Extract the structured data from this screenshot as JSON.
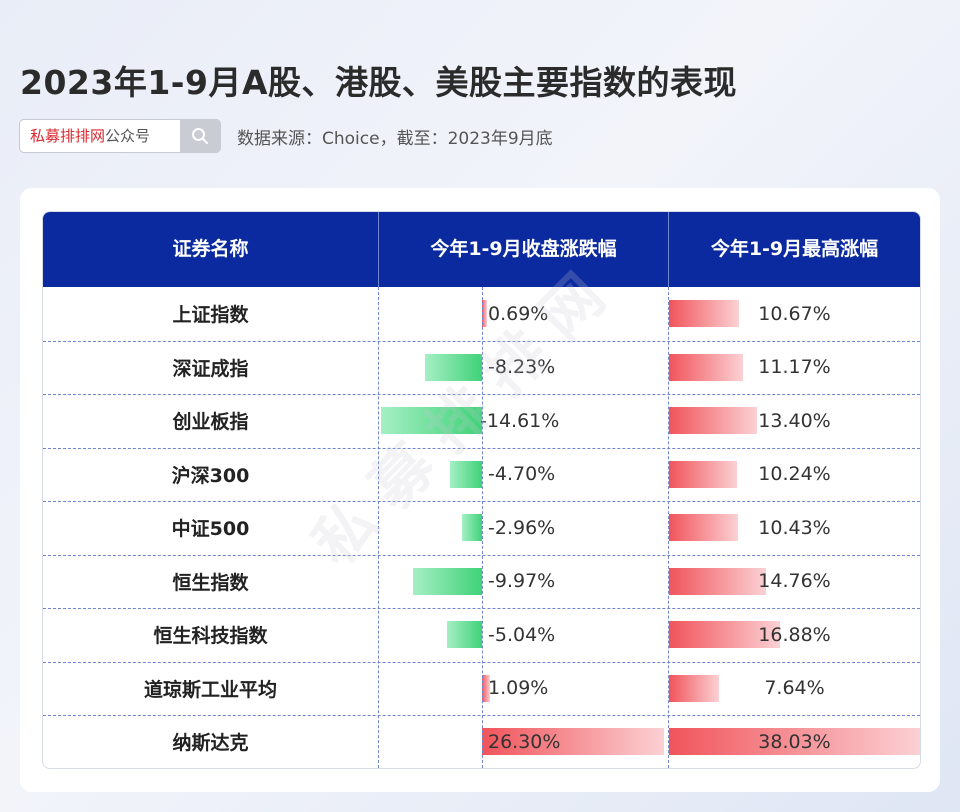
{
  "header": {
    "title": "2023年1-9月A股、港股、美股主要指数的表现",
    "search_brand": "私募排排网",
    "search_suffix": "公众号",
    "source": "数据来源：Choice，截至：2023年9月底"
  },
  "table": {
    "columns": [
      "证券名称",
      "今年1-9月收盘涨跌幅",
      "今年1-9月最高涨幅"
    ],
    "rows": [
      {
        "name": "上证指数",
        "close": 0.69,
        "close_text": "0.69%",
        "high": 10.67,
        "high_text": "10.67%"
      },
      {
        "name": "深证成指",
        "close": -8.23,
        "close_text": "-8.23%",
        "high": 11.17,
        "high_text": "11.17%"
      },
      {
        "name": "创业板指",
        "close": -14.61,
        "close_text": "-14.61%",
        "high": 13.4,
        "high_text": "13.40%"
      },
      {
        "name": "沪深300",
        "close": -4.7,
        "close_text": "-4.70%",
        "high": 10.24,
        "high_text": "10.24%"
      },
      {
        "name": "中证500",
        "close": -2.96,
        "close_text": "-2.96%",
        "high": 10.43,
        "high_text": "10.43%"
      },
      {
        "name": "恒生指数",
        "close": -9.97,
        "close_text": "-9.97%",
        "high": 14.76,
        "high_text": "14.76%"
      },
      {
        "name": "恒生科技指数",
        "close": -5.04,
        "close_text": "-5.04%",
        "high": 16.88,
        "high_text": "16.88%"
      },
      {
        "name": "道琼斯工业平均",
        "close": 1.09,
        "close_text": "1.09%",
        "high": 7.64,
        "high_text": "7.64%"
      },
      {
        "name": "纳斯达克",
        "close": 26.3,
        "close_text": "26.30%",
        "high": 38.03,
        "high_text": "38.03%"
      }
    ]
  },
  "chart_data": {
    "type": "table",
    "categories": [
      "上证指数",
      "深证成指",
      "创业板指",
      "沪深300",
      "中证500",
      "恒生指数",
      "恒生科技指数",
      "道琼斯工业平均",
      "纳斯达克"
    ],
    "series": [
      {
        "name": "今年1-9月收盘涨跌幅",
        "values": [
          0.69,
          -8.23,
          -14.61,
          -4.7,
          -2.96,
          -9.97,
          -5.04,
          1.09,
          26.3
        ]
      },
      {
        "name": "今年1-9月最高涨幅",
        "values": [
          10.67,
          11.17,
          13.4,
          10.24,
          10.43,
          14.76,
          16.88,
          7.64,
          38.03
        ]
      }
    ],
    "title": "2023年1-9月A股、港股、美股主要指数的表现",
    "colors": {
      "positive": "#f0545b",
      "negative": "#3fd278",
      "header": "#0b2a9f"
    }
  },
  "watermark": "私募排排网"
}
